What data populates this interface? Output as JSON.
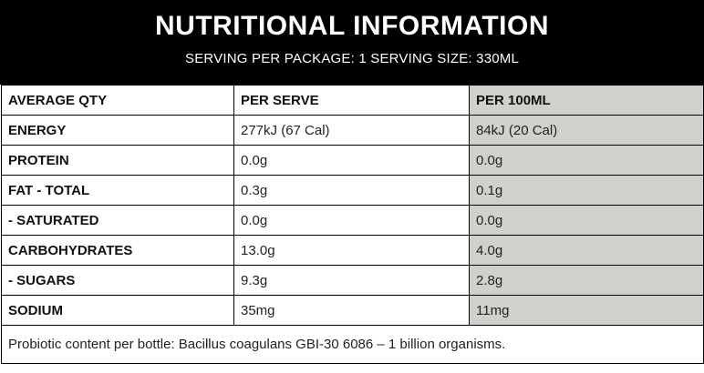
{
  "header": {
    "title": "NUTRITIONAL INFORMATION",
    "subtitle": "SERVING PER PACKAGE: 1 SERVING SIZE: 330ML"
  },
  "table": {
    "columns": [
      "AVERAGE QTY",
      "PER SERVE",
      "PER 100ML"
    ],
    "rows": [
      {
        "label": "ENERGY",
        "per_serve": "277kJ (67 Cal)",
        "per_100ml": "84kJ (20 Cal)"
      },
      {
        "label": "PROTEIN",
        "per_serve": "0.0g",
        "per_100ml": "0.0g"
      },
      {
        "label": "FAT - TOTAL",
        "per_serve": "0.3g",
        "per_100ml": "0.1g"
      },
      {
        "label": "- SATURATED",
        "per_serve": "0.0g",
        "per_100ml": "0.0g"
      },
      {
        "label": "CARBOHYDRATES",
        "per_serve": "13.0g",
        "per_100ml": "4.0g"
      },
      {
        "label": "- SUGARS",
        "per_serve": "9.3g",
        "per_100ml": "2.8g"
      },
      {
        "label": "SODIUM",
        "per_serve": "35mg",
        "per_100ml": "11mg"
      }
    ]
  },
  "footer": {
    "note": "Probiotic content per bottle: Bacillus coagulans GBI-30 6086 – 1 billion organisms."
  },
  "colors": {
    "header_bg": "#000000",
    "shaded_column": "#d0d0cc"
  }
}
